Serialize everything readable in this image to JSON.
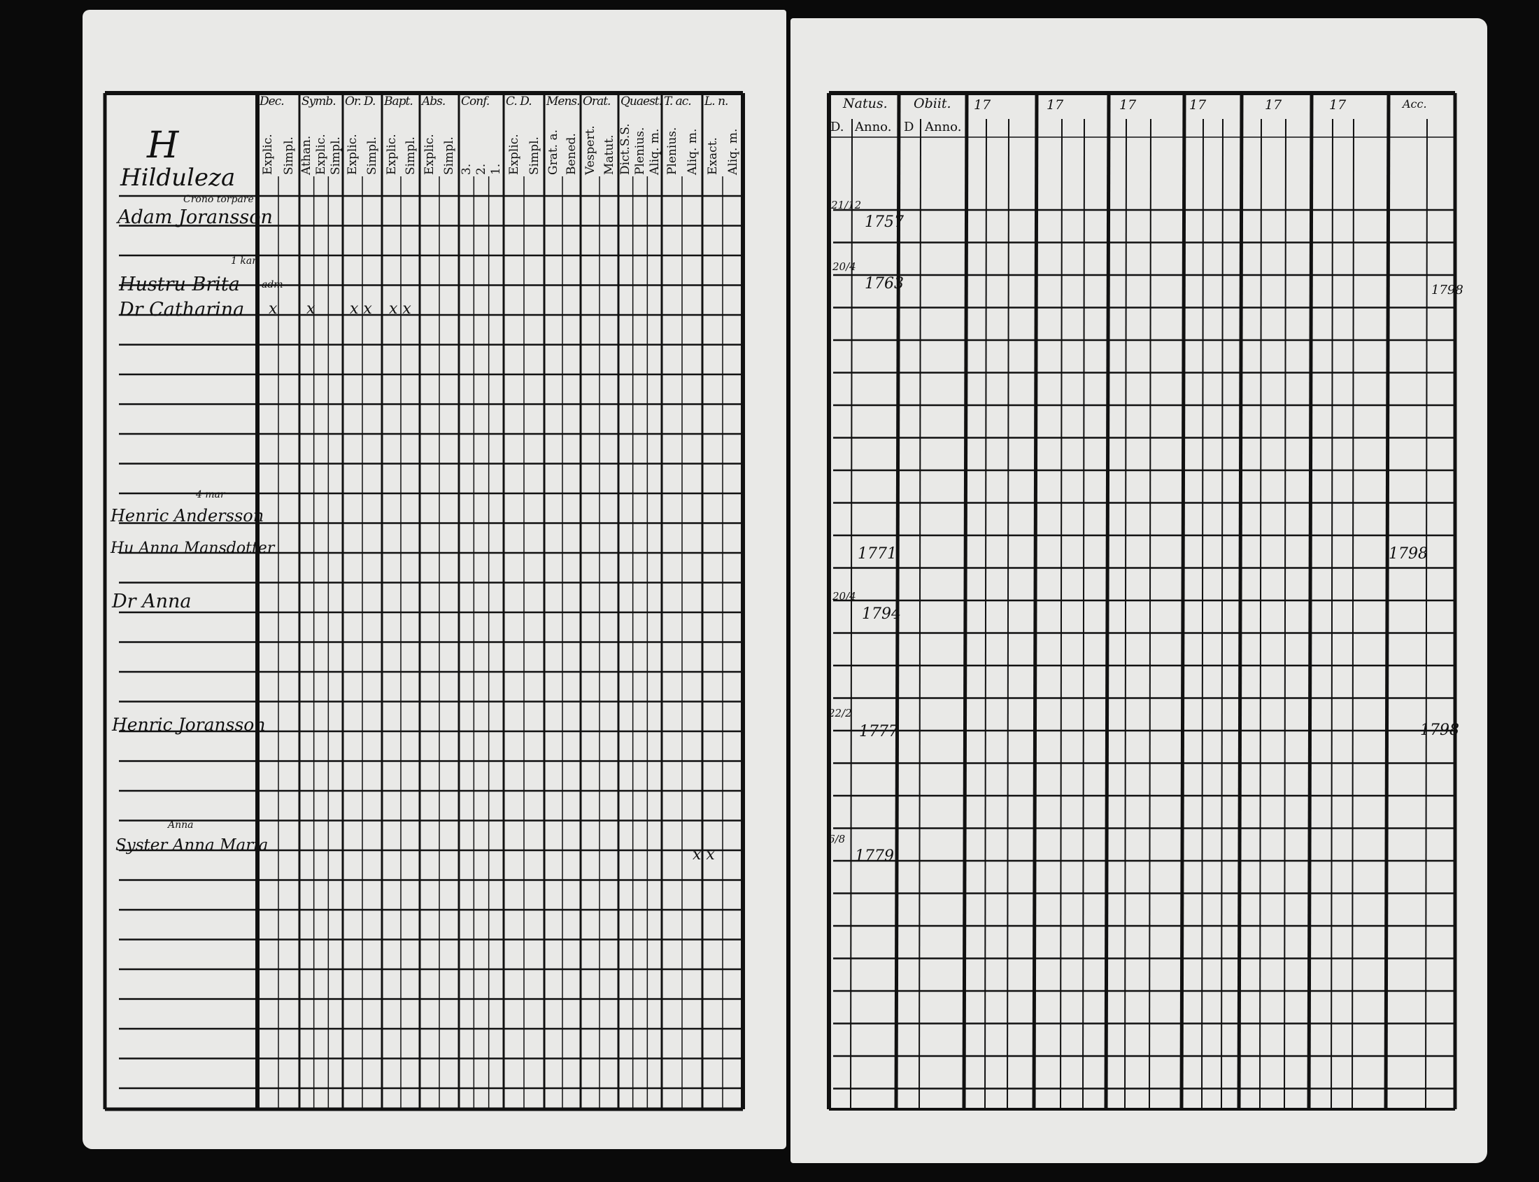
{
  "left_page": {
    "letter": "H",
    "headers": [
      {
        "label": "Dec.",
        "subs": [
          "Explic.",
          "Simpl."
        ]
      },
      {
        "label": "Symb.",
        "subs": [
          "Athan.",
          "Explic.",
          "Simpl."
        ]
      },
      {
        "label": "Or. D.",
        "subs": [
          "Explic.",
          "Simpl."
        ]
      },
      {
        "label": "Bapt.",
        "subs": [
          "Explic.",
          "Simpl."
        ]
      },
      {
        "label": "Abs.",
        "subs": [
          "Explic.",
          "Simpl."
        ]
      },
      {
        "label": "Conf.",
        "subs": [
          "3.",
          "2.",
          "1."
        ]
      },
      {
        "label": "C. D.",
        "subs": [
          "Explic.",
          "Simpl."
        ]
      },
      {
        "label": "Mens.",
        "subs": [
          "Grat. a.",
          "Bened."
        ]
      },
      {
        "label": "Orat.",
        "subs": [
          "Vespert.",
          "Matut."
        ]
      },
      {
        "label": "Quaest.",
        "subs": [
          "Dict.S.S.",
          "Plenius.",
          "Aliq. m."
        ]
      },
      {
        "label": "T. ac.",
        "subs": [
          "Plenius.",
          "Aliq. m."
        ]
      },
      {
        "label": "L. n.",
        "subs": [
          "Exact.",
          "Aliq. m."
        ]
      }
    ],
    "entries": [
      {
        "text": "Hilduleza",
        "note": ""
      },
      {
        "text": "Adam Joransson",
        "note": "Crono torpare"
      },
      {
        "text": "Hustru Brita",
        "note": "1 kar"
      },
      {
        "text": "Dr Catharina",
        "note": "adm"
      },
      {
        "text": "Henric Andersson",
        "note": "4 mar"
      },
      {
        "text": "Hu Anna Mansdotter",
        "note": ""
      },
      {
        "text": "Dr Anna",
        "note": ""
      },
      {
        "text": "Henric Joransson",
        "note": ""
      },
      {
        "text": "Syster Anna Maria",
        "note": "Anna"
      }
    ],
    "marks": [
      "x",
      "x",
      "x x",
      "x x",
      "x x"
    ]
  },
  "right_page": {
    "headers": {
      "natus": "Natus.",
      "obiit": "Obiit.",
      "natus_d": "D.",
      "natus_anno": "Anno.",
      "obiit_d": "D",
      "obiit_anno": "Anno.",
      "years": [
        "17",
        "17",
        "17",
        "17",
        "17",
        "17"
      ],
      "last": "Acc."
    },
    "births": [
      {
        "day": "21/12",
        "year": "1757"
      },
      {
        "day": "20/4",
        "year": "1763"
      },
      {
        "day": "",
        "year": "1771"
      },
      {
        "day": "20/4",
        "year": "1794"
      },
      {
        "day": "22/2",
        "year": "1777"
      },
      {
        "day": "6/8",
        "year": "1779"
      }
    ],
    "acc_years": [
      "1798",
      "1798",
      "1798"
    ]
  }
}
